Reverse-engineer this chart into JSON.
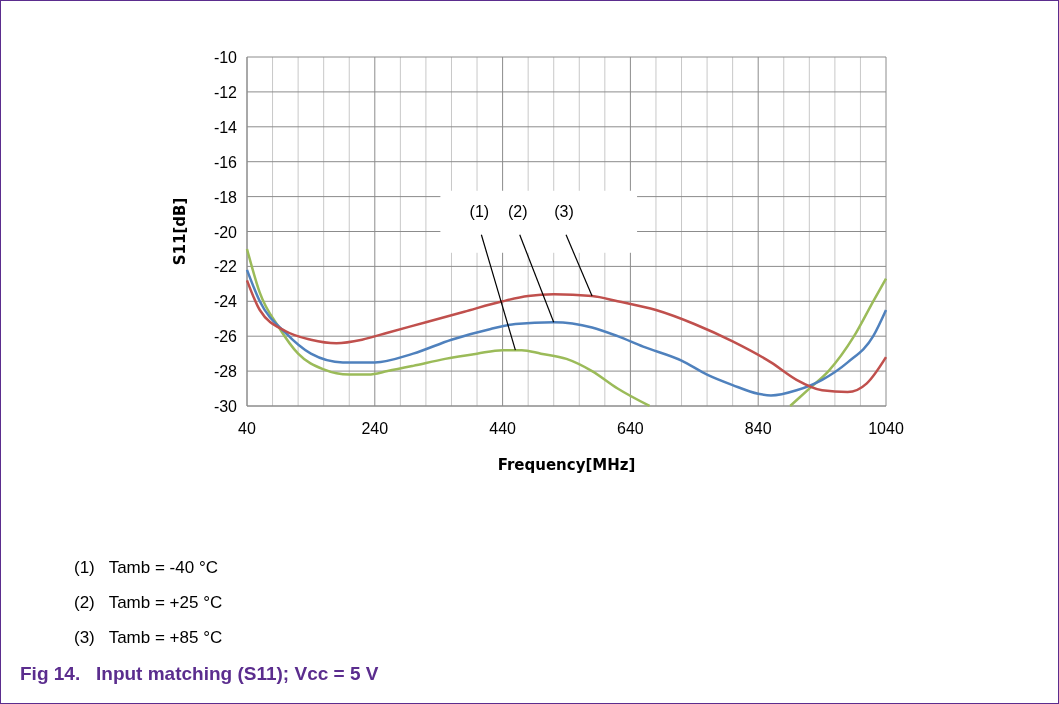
{
  "chart_data": {
    "type": "line",
    "title": "Fig 14.   Input matching (S11); Vcc = 5 V",
    "xlabel": "Frequency[MHz]",
    "ylabel": "S11[dB]",
    "xlim": [
      40,
      1040
    ],
    "xticks": [
      40,
      240,
      440,
      640,
      840,
      1040
    ],
    "ylim": [
      -30,
      -10
    ],
    "yticks": [
      -30,
      -28,
      -26,
      -24,
      -22,
      -20,
      -18,
      -16,
      -14,
      -12,
      -10
    ],
    "grid": true,
    "marker": "none",
    "line_style": "solid",
    "series": [
      {
        "color": "#9bbb59",
        "x": [
          40,
          60,
          90,
          120,
          160,
          200,
          230,
          260,
          300,
          350,
          400,
          440,
          470,
          500,
          540,
          580,
          620,
          670,
          780,
          890,
          920,
          950,
          990,
          1020,
          1040
        ],
        "values": [
          -21,
          -23.5,
          -25.5,
          -27,
          -27.9,
          -28.2,
          -28.2,
          -28,
          -27.7,
          -27.3,
          -27,
          -26.8,
          -26.8,
          -27,
          -27.3,
          -28,
          -29,
          -30,
          null,
          -30,
          -29,
          -28,
          -26,
          -24,
          -22.7
        ]
      },
      {
        "color": "#4f81bd",
        "x": [
          40,
          60,
          100,
          140,
          190,
          240,
          300,
          360,
          420,
          460,
          520,
          580,
          620,
          660,
          720,
          760,
          800,
          840,
          860,
          900,
          940,
          980,
          1020,
          1040
        ],
        "values": [
          -22.2,
          -24,
          -25.8,
          -27,
          -27.5,
          -27.5,
          -27,
          -26.2,
          -25.6,
          -25.3,
          -25.2,
          -25.5,
          -26,
          -26.6,
          -27.4,
          -28.2,
          -28.8,
          -29.3,
          -29.4,
          -29.1,
          -28.5,
          -27.5,
          -26,
          -24.5
        ]
      },
      {
        "color": "#c0504d",
        "x": [
          40,
          60,
          100,
          140,
          180,
          220,
          260,
          320,
          380,
          440,
          480,
          520,
          580,
          620,
          680,
          740,
          800,
          860,
          900,
          940,
          980,
          1010,
          1040
        ],
        "values": [
          -22.8,
          -24.5,
          -25.7,
          -26.2,
          -26.4,
          -26.2,
          -25.8,
          -25.2,
          -24.6,
          -24,
          -23.7,
          -23.6,
          -23.7,
          -24,
          -24.5,
          -25.3,
          -26.3,
          -27.5,
          -28.5,
          -29.1,
          -29.2,
          -28.7,
          -27.2
        ]
      }
    ],
    "annotations": [
      {
        "text": "(1)",
        "x": 460,
        "y": -26.8
      },
      {
        "text": "(2)",
        "x": 520,
        "y": -25.2
      },
      {
        "text": "(3)",
        "x": 580,
        "y": -23.7
      },
      "(1)   Tamb = -40 °C",
      "(2)   Tamb = +25 °C",
      "(3)   Tamb = +85 °C"
    ]
  }
}
